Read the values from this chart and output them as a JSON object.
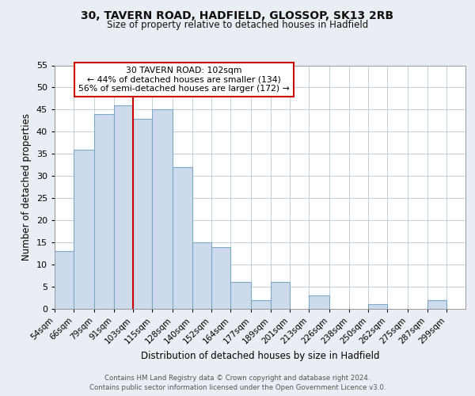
{
  "title1": "30, TAVERN ROAD, HADFIELD, GLOSSOP, SK13 2RB",
  "title2": "Size of property relative to detached houses in Hadfield",
  "xlabel": "Distribution of detached houses by size in Hadfield",
  "ylabel": "Number of detached properties",
  "bin_labels": [
    "54sqm",
    "66sqm",
    "79sqm",
    "91sqm",
    "103sqm",
    "115sqm",
    "128sqm",
    "140sqm",
    "152sqm",
    "164sqm",
    "177sqm",
    "189sqm",
    "201sqm",
    "213sqm",
    "226sqm",
    "238sqm",
    "250sqm",
    "262sqm",
    "275sqm",
    "287sqm",
    "299sqm"
  ],
  "bin_edges": [
    54,
    66,
    79,
    91,
    103,
    115,
    128,
    140,
    152,
    164,
    177,
    189,
    201,
    213,
    226,
    238,
    250,
    262,
    275,
    287,
    299
  ],
  "bar_heights": [
    13,
    36,
    44,
    46,
    43,
    45,
    32,
    15,
    14,
    6,
    2,
    6,
    0,
    3,
    0,
    0,
    1,
    0,
    0,
    2,
    0
  ],
  "bar_color": "#ccdaeb",
  "bar_edge_color": "#7aaac8",
  "property_line_x": 103,
  "property_line_color": "#cc0000",
  "annotation_line1": "30 TAVERN ROAD: 102sqm",
  "annotation_line2": "← 44% of detached houses are smaller (134)",
  "annotation_line3": "56% of semi-detached houses are larger (172) →",
  "ylim": [
    0,
    55
  ],
  "yticks": [
    0,
    5,
    10,
    15,
    20,
    25,
    30,
    35,
    40,
    45,
    50,
    55
  ],
  "footer1": "Contains HM Land Registry data © Crown copyright and database right 2024.",
  "footer2": "Contains public sector information licensed under the Open Government Licence v3.0.",
  "bg_color": "#e8eef4",
  "plot_bg_color": "#ffffff",
  "grid_color": "#b8c8d8"
}
